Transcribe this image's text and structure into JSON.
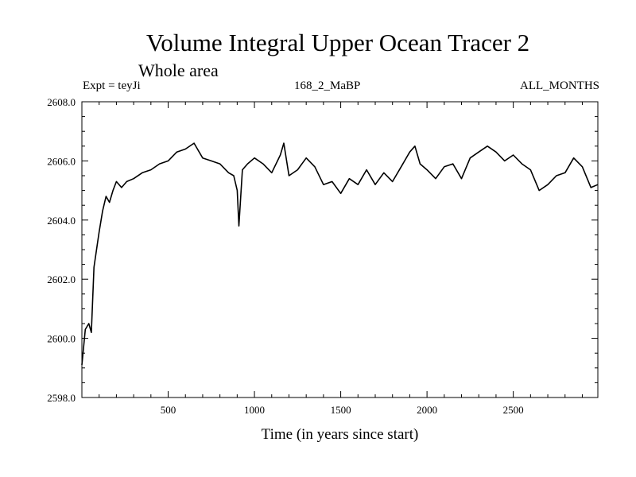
{
  "chart_data": {
    "type": "line",
    "title": "Volume Integral Upper Ocean Tracer 2",
    "subtitle": "Whole area",
    "header_left": "Expt = teyJi",
    "header_center": "168_2_MaBP",
    "header_right": "ALL_MONTHS",
    "xlabel": "Time (in years since start)",
    "ylabel": "",
    "xlim": [
      0,
      2990
    ],
    "ylim": [
      2598.0,
      2608.0
    ],
    "x_ticks": [
      500,
      1000,
      1500,
      2000,
      2500
    ],
    "x_tick_labels": [
      "500",
      "1000",
      "1500",
      "2000",
      "2500"
    ],
    "y_ticks": [
      2598.0,
      2600.0,
      2602.0,
      2604.0,
      2606.0,
      2608.0
    ],
    "y_tick_labels": [
      "2598.0",
      "2600.0",
      "2602.0",
      "2604.0",
      "2606.0",
      "2608.0"
    ],
    "grid": false,
    "series": [
      {
        "name": "Tracer 2",
        "x": [
          0,
          20,
          40,
          55,
          70,
          90,
          100,
          120,
          140,
          160,
          180,
          200,
          230,
          260,
          300,
          350,
          400,
          450,
          500,
          550,
          600,
          650,
          700,
          750,
          800,
          850,
          880,
          900,
          910,
          930,
          960,
          1000,
          1050,
          1100,
          1150,
          1170,
          1200,
          1250,
          1300,
          1350,
          1400,
          1450,
          1500,
          1550,
          1600,
          1650,
          1700,
          1750,
          1800,
          1850,
          1900,
          1930,
          1960,
          2000,
          2050,
          2100,
          2150,
          2200,
          2250,
          2300,
          2350,
          2400,
          2450,
          2500,
          2550,
          2600,
          2650,
          2700,
          2750,
          2800,
          2850,
          2900,
          2950,
          2990
        ],
        "values": [
          2599.1,
          2600.3,
          2600.5,
          2600.2,
          2602.4,
          2603.2,
          2603.6,
          2604.3,
          2604.8,
          2604.6,
          2605.0,
          2605.3,
          2605.1,
          2605.3,
          2605.4,
          2605.6,
          2605.7,
          2605.9,
          2606.0,
          2606.3,
          2606.4,
          2606.6,
          2606.1,
          2606.0,
          2605.9,
          2605.6,
          2605.5,
          2605.0,
          2603.8,
          2605.7,
          2605.9,
          2606.1,
          2605.9,
          2605.6,
          2606.2,
          2606.6,
          2605.5,
          2605.7,
          2606.1,
          2605.8,
          2605.2,
          2605.3,
          2604.9,
          2605.4,
          2605.2,
          2605.7,
          2605.2,
          2605.6,
          2605.3,
          2605.8,
          2606.3,
          2606.5,
          2605.9,
          2605.7,
          2605.4,
          2605.8,
          2605.9,
          2605.4,
          2606.1,
          2606.3,
          2606.5,
          2606.3,
          2606.0,
          2606.2,
          2605.9,
          2605.7,
          2605.0,
          2605.2,
          2605.5,
          2605.6,
          2606.1,
          2605.8,
          2605.1,
          2605.2
        ]
      }
    ]
  },
  "colors": {
    "line": "#000000",
    "axes": "#000000",
    "background": "#ffffff"
  }
}
